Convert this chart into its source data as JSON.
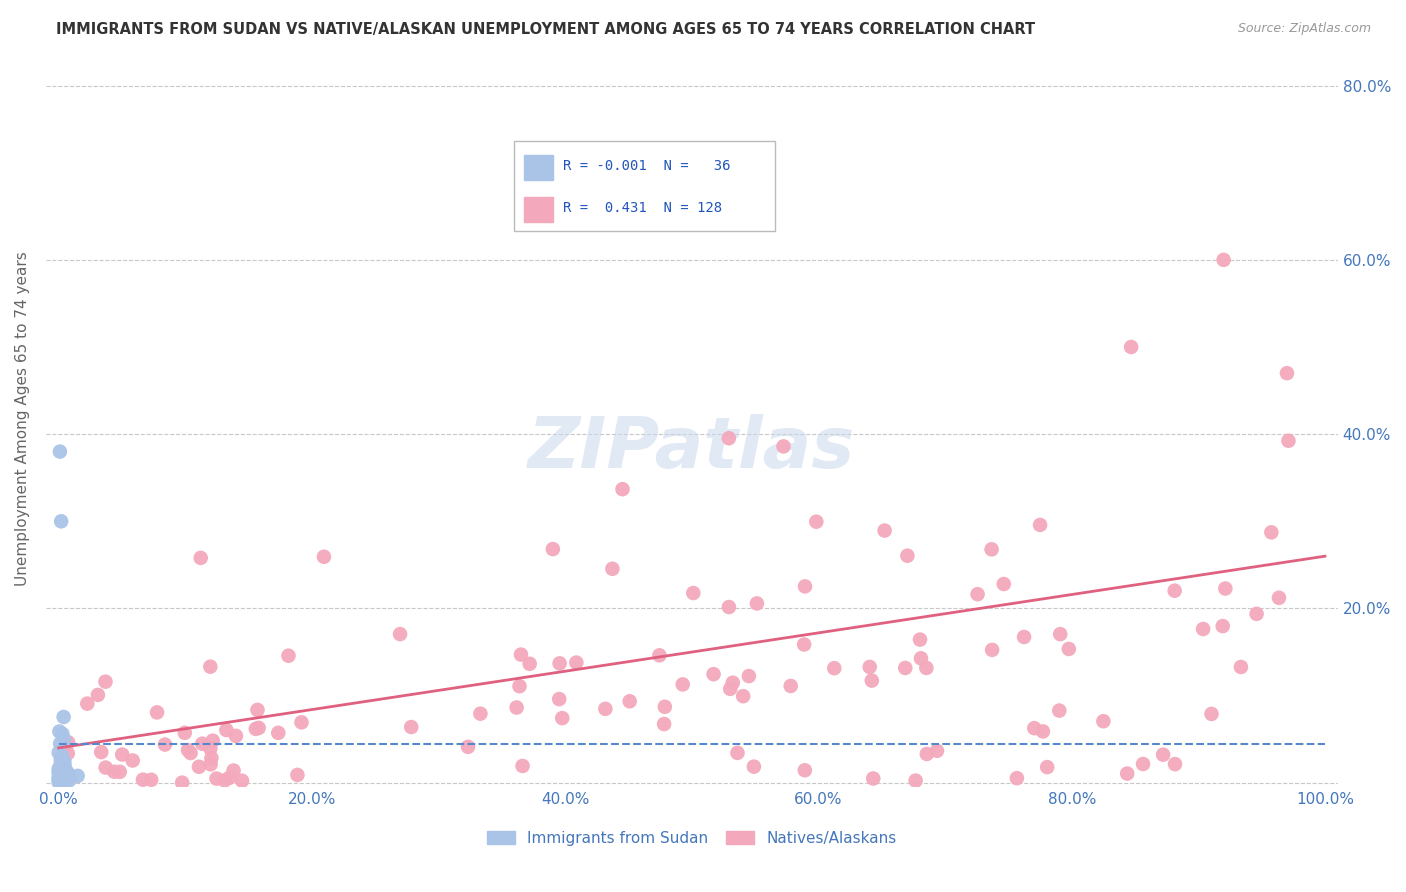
{
  "title": "IMMIGRANTS FROM SUDAN VS NATIVE/ALASKAN UNEMPLOYMENT AMONG AGES 65 TO 74 YEARS CORRELATION CHART",
  "source": "Source: ZipAtlas.com",
  "ylabel": "Unemployment Among Ages 65 to 74 years",
  "blue_R": -0.001,
  "blue_N": 36,
  "pink_R": 0.431,
  "pink_N": 128,
  "blue_color": "#aac4e8",
  "pink_color": "#f4a8bc",
  "blue_line_color": "#5588cc",
  "pink_line_color": "#e06080",
  "blue_label": "Immigrants from Sudan",
  "pink_label": "Natives/Alaskans",
  "xlim": [
    -0.01,
    1.01
  ],
  "ylim": [
    -0.005,
    0.84
  ],
  "x_ticks": [
    0.0,
    0.2,
    0.4,
    0.6,
    0.8,
    1.0
  ],
  "x_tick_labels": [
    "0.0%",
    "20.0%",
    "40.0%",
    "60.0%",
    "80.0%",
    "100.0%"
  ],
  "y_ticks": [
    0.0,
    0.2,
    0.4,
    0.6,
    0.8
  ],
  "y_tick_labels": [
    "",
    "20.0%",
    "40.0%",
    "60.0%",
    "80.0%"
  ],
  "right_y_ticks": [
    0.2,
    0.4,
    0.6,
    0.8
  ],
  "right_y_tick_labels": [
    "20.0%",
    "40.0%",
    "60.0%",
    "80.0%"
  ],
  "background_color": "#ffffff",
  "grid_color": "#c8c8c8",
  "tick_color": "#4477bb",
  "watermark": "ZIPatlas",
  "seed": 77
}
